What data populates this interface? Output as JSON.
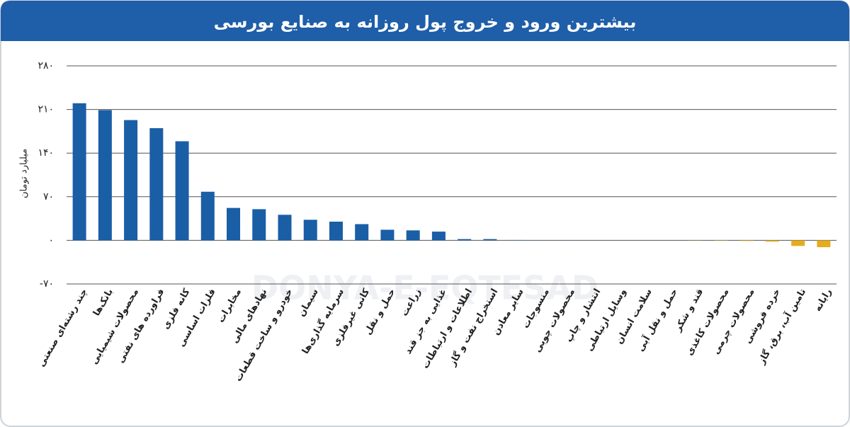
{
  "chart_data": {
    "type": "bar",
    "title": "بیشترین ورود و خروج پول روزانه به صنایع بورسی",
    "y_label": "میلیارد تومان",
    "watermark": "DONYA-E-EQTESAD",
    "categories": [
      "چند رشته‌ای صنعتی",
      "بانک‌ها",
      "محصولات شیمیایی",
      "فراورده های نفتی",
      "کانه فلزی",
      "فلزات اساسی",
      "مخابرات",
      "نهادهای مالی",
      "خودرو و ساخت قطعات",
      "سیمان",
      "سرمایه گذاری‌ها",
      "کانی غیرفلزی",
      "حمل و نقل",
      "زراعت",
      "غذایی به جز قند",
      "اطلاعات و ارتباطات",
      "استخراج نفت و گاز",
      "سایر معادن",
      "منسوجات",
      "محصولات چوبی",
      "انتشار و چاپ",
      "وسایل ارتباطی",
      "سلامت انسان",
      "حمل و نقل آبی",
      "قند و شکر",
      "محصولات کاغذی",
      "محصولات چرمی",
      "خرده فروشی",
      "تامین آب، برق، گاز",
      "رایانه"
    ],
    "values": [
      220,
      209,
      193,
      180,
      159,
      78,
      52,
      50,
      41,
      33,
      30,
      26,
      17,
      16,
      14,
      2,
      2,
      0.5,
      0.3,
      0.2,
      0.1,
      0.1,
      0,
      0,
      -0.2,
      -0.5,
      -1,
      -2,
      -9,
      -11
    ],
    "positive_color": "#1a5ea6",
    "negative_color": "#e3ad1f",
    "ylim": [
      -70,
      280
    ],
    "yticks": [
      {
        "value": -70,
        "label": "-۷۰"
      },
      {
        "value": 0,
        "label": "۰"
      },
      {
        "value": 70,
        "label": "۷۰"
      },
      {
        "value": 140,
        "label": "۱۴۰"
      },
      {
        "value": 210,
        "label": "۲۱۰"
      },
      {
        "value": 280,
        "label": "۲۸۰"
      }
    ],
    "grid": true
  }
}
